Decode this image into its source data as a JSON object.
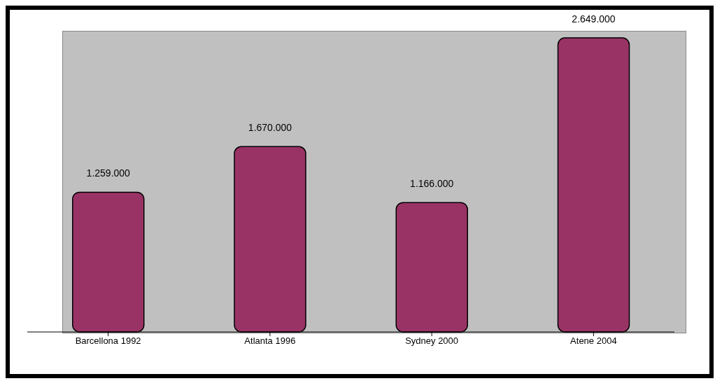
{
  "chart_data": {
    "type": "bar",
    "categories": [
      "Barcellona 1992",
      "Atlanta 1996",
      "Sydney 2000",
      "Atene 2004"
    ],
    "values": [
      1259000,
      1670000,
      1166000,
      2649000
    ],
    "value_labels": [
      "1.259.000",
      "1.670.000",
      "1.166.000",
      "2.649.000"
    ],
    "color": "#993366"
  }
}
